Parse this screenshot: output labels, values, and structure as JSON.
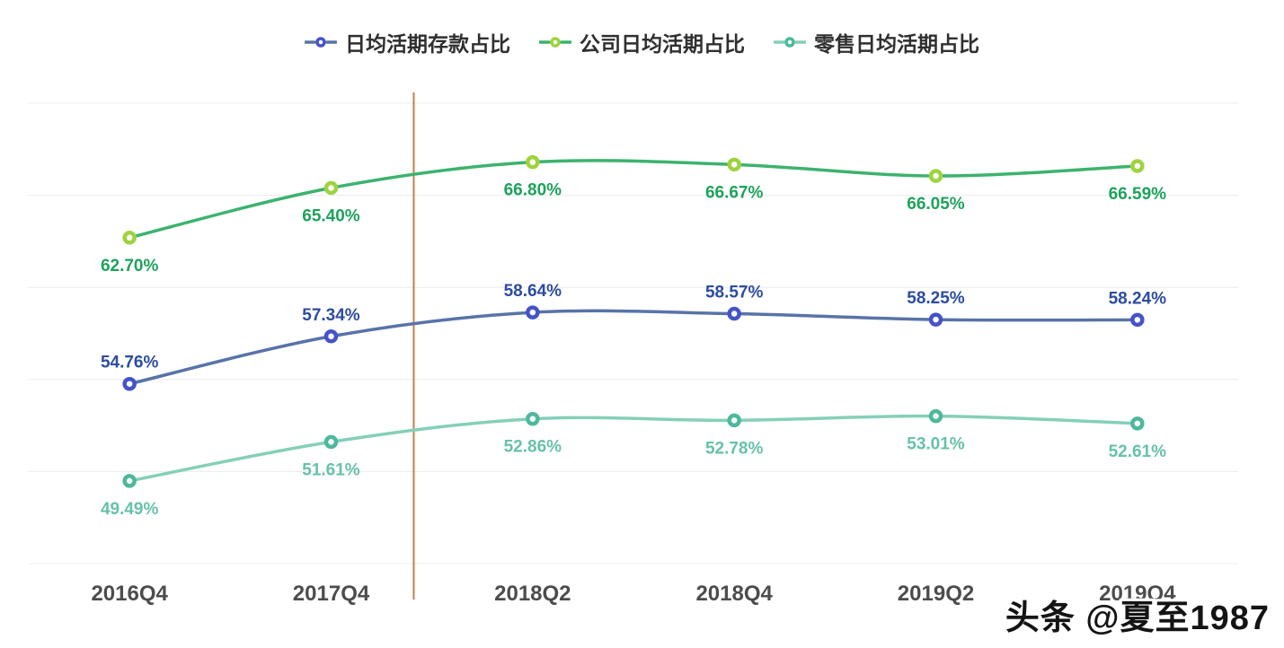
{
  "page": {
    "background": "#ffffff"
  },
  "watermark": {
    "text": "头条 @夏至1987"
  },
  "chart_data": {
    "type": "line",
    "smooth": true,
    "grid": true,
    "legend_position": "top",
    "categories": [
      "2016Q4",
      "2017Q4",
      "2018Q2",
      "2018Q4",
      "2019Q2",
      "2019Q4"
    ],
    "series": [
      {
        "name": "日均活期存款占比",
        "values": [
          54.76,
          57.34,
          58.64,
          58.57,
          58.25,
          58.24
        ],
        "line_color": "#5873a8",
        "marker_color": "#4553c9",
        "label_color": "#2c4c9e",
        "label_position": "top"
      },
      {
        "name": "公司日均活期占比",
        "values": [
          62.7,
          65.4,
          66.8,
          66.67,
          66.05,
          66.59
        ],
        "line_color": "#3cb36d",
        "marker_color": "#9ed33f",
        "label_color": "#1ea25b",
        "label_position": "bottom"
      },
      {
        "name": "零售日均活期占比",
        "values": [
          49.49,
          51.61,
          52.86,
          52.78,
          53.01,
          52.61
        ],
        "line_color": "#85cfb9",
        "marker_color": "#4eb89d",
        "label_color": "#67c1aa",
        "label_position": "bottom"
      }
    ],
    "ylim": [
      45,
      70
    ],
    "grid_interval": 5,
    "gridline_color": "#ececec",
    "x_axis_label_color": "#4c4c4c",
    "value_suffix": "%",
    "markline": {
      "color": "#c67f45",
      "between": [
        "2017Q4",
        "2018Q2"
      ],
      "t": 0.41
    },
    "xlabel": "",
    "ylabel": "",
    "title": ""
  }
}
